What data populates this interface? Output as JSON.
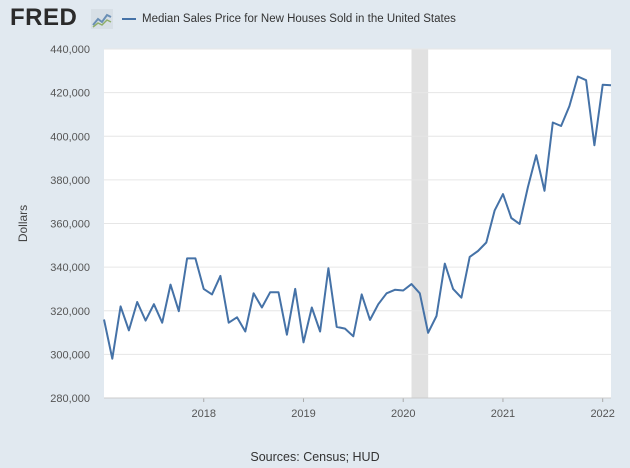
{
  "header": {
    "logo_text": "FRED",
    "logo_icon": "fred-chart-icon",
    "legend_label": "Median Sales Price for New Houses Sold in the United States"
  },
  "colors": {
    "background": "#e1e9f0",
    "plot_background": "#ffffff",
    "line": "#4572a7",
    "recession": "#e1e1e1",
    "grid": "#e6e6e6"
  },
  "source_text": "Sources: Census; HUD",
  "chart_data": {
    "type": "line",
    "title": "",
    "xlabel": "",
    "ylabel": "Dollars",
    "ylim": [
      280000,
      440000
    ],
    "yticks": [
      280000,
      300000,
      320000,
      340000,
      360000,
      380000,
      400000,
      420000,
      440000
    ],
    "ytick_labels": [
      "280,000",
      "300,000",
      "320,000",
      "340,000",
      "360,000",
      "380,000",
      "400,000",
      "420,000",
      "440,000"
    ],
    "xlim": [
      "2017-01",
      "2022-02"
    ],
    "xticks": [
      "2018-01",
      "2019-01",
      "2020-01",
      "2021-01",
      "2022-01"
    ],
    "xtick_labels": [
      "2018",
      "2019",
      "2020",
      "2021",
      "2022"
    ],
    "grid": "horizontal",
    "recession_shading": [
      {
        "start": "2020-02",
        "end": "2020-04"
      }
    ],
    "series": [
      {
        "name": "Median Sales Price for New Houses Sold in the United States",
        "x": [
          "2017-01",
          "2017-02",
          "2017-03",
          "2017-04",
          "2017-05",
          "2017-06",
          "2017-07",
          "2017-08",
          "2017-09",
          "2017-10",
          "2017-11",
          "2017-12",
          "2018-01",
          "2018-02",
          "2018-03",
          "2018-04",
          "2018-05",
          "2018-06",
          "2018-07",
          "2018-08",
          "2018-09",
          "2018-10",
          "2018-11",
          "2018-12",
          "2019-01",
          "2019-02",
          "2019-03",
          "2019-04",
          "2019-05",
          "2019-06",
          "2019-07",
          "2019-08",
          "2019-09",
          "2019-10",
          "2019-11",
          "2019-12",
          "2020-01",
          "2020-02",
          "2020-03",
          "2020-04",
          "2020-05",
          "2020-06",
          "2020-07",
          "2020-08",
          "2020-09",
          "2020-10",
          "2020-11",
          "2020-12",
          "2021-01",
          "2021-02",
          "2021-03",
          "2021-04",
          "2021-05",
          "2021-06",
          "2021-07",
          "2021-08",
          "2021-09",
          "2021-10",
          "2021-11",
          "2021-12",
          "2022-01",
          "2022-02"
        ],
        "values": [
          316000,
          298000,
          322000,
          311000,
          324000,
          315500,
          323000,
          314500,
          332000,
          319800,
          344000,
          344000,
          330000,
          327500,
          336000,
          314500,
          317000,
          310500,
          328000,
          321500,
          328500,
          328500,
          309000,
          330000,
          305500,
          321500,
          310500,
          339500,
          312600,
          311800,
          308300,
          327500,
          315800,
          323000,
          328000,
          329600,
          329300,
          332200,
          328000,
          309900,
          317600,
          341600,
          330000,
          326000,
          344700,
          347400,
          351300,
          365900,
          373500,
          362500,
          359800,
          376700,
          391300,
          375000,
          406300,
          404700,
          413800,
          427400,
          425700,
          395900,
          423600,
          423400
        ]
      }
    ]
  }
}
